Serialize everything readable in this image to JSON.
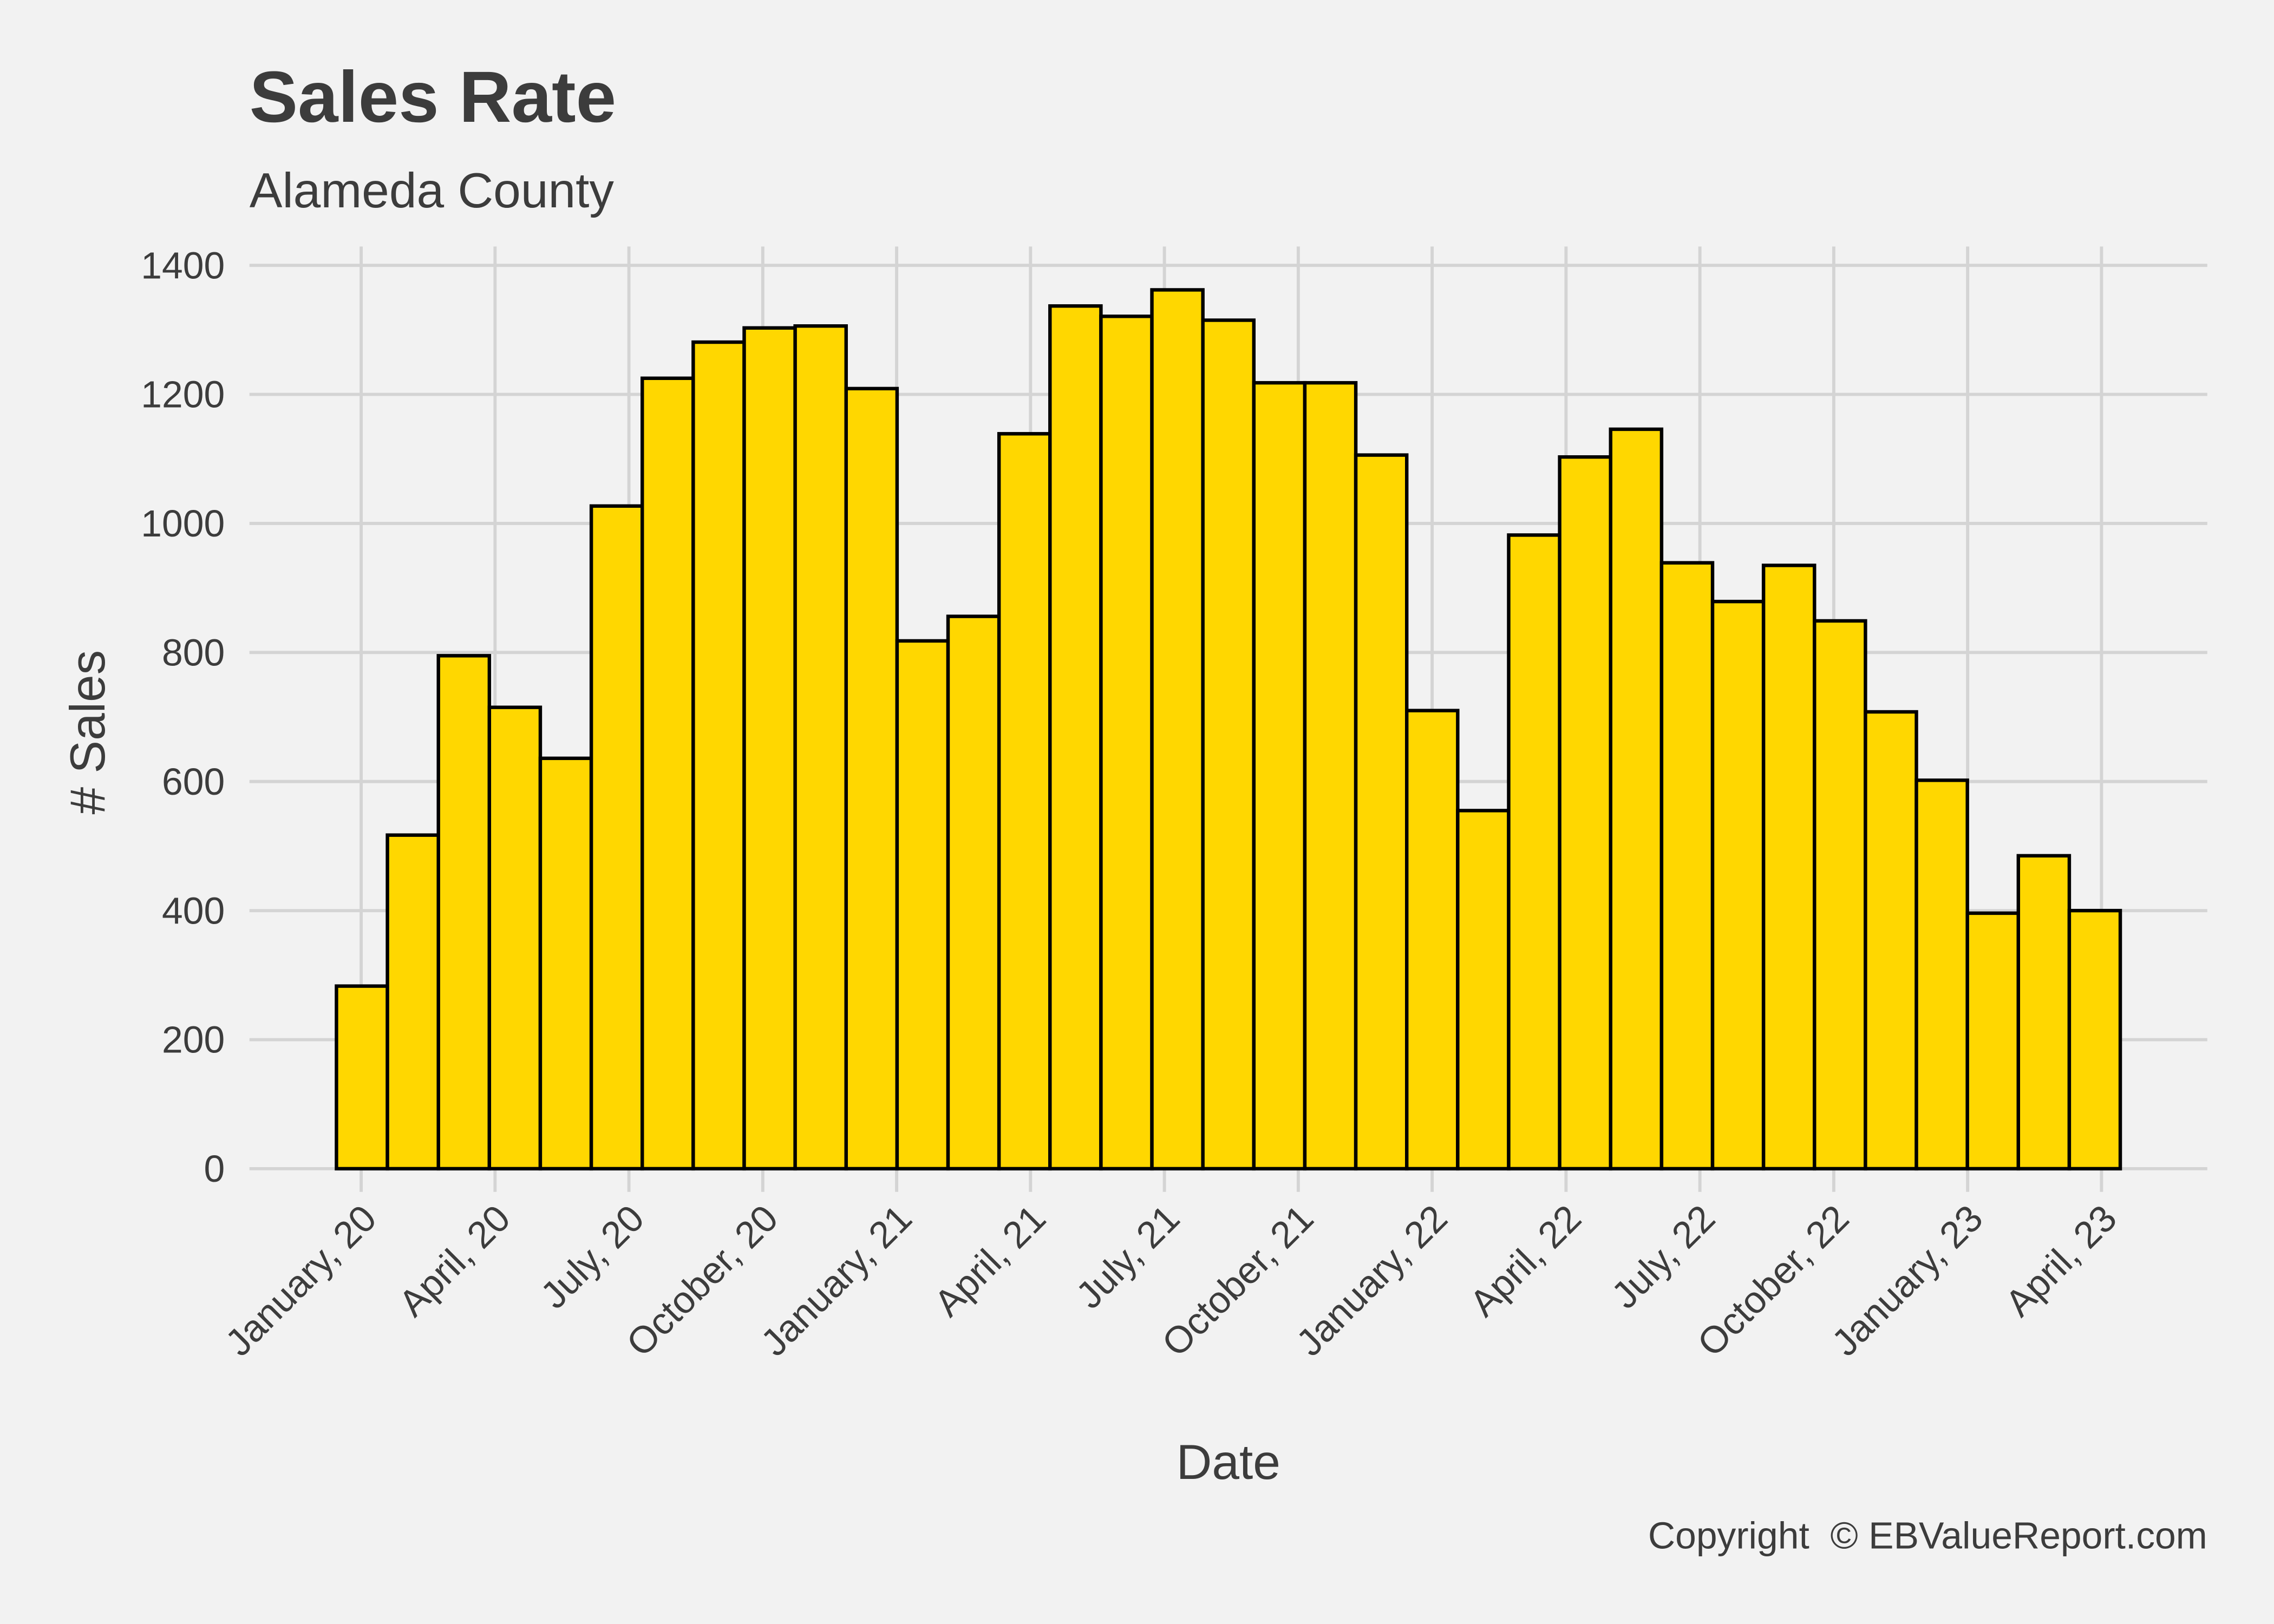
{
  "chart_data": {
    "type": "bar",
    "title": "Sales Rate",
    "subtitle": "Alameda County",
    "xlabel": "Date",
    "ylabel": "# Sales",
    "caption": "Copyright  © EBValueReport.com",
    "color": "#ffd700",
    "edgecolor": "#000000",
    "grid": true,
    "categories": [
      null,
      null,
      null,
      null,
      null,
      null,
      null,
      null,
      null,
      null,
      null,
      null,
      null,
      null,
      null,
      null,
      null,
      null,
      null,
      null,
      null,
      null,
      null,
      null,
      null,
      null,
      null,
      null,
      null,
      null,
      null,
      null,
      null,
      null,
      null
    ],
    "values": [
      283,
      517,
      795,
      715,
      636,
      1027,
      1225,
      1281,
      1303,
      1306,
      1209,
      818,
      856,
      1139,
      1337,
      1321,
      1362,
      1315,
      1218,
      1218,
      1106,
      710,
      555,
      982,
      1103,
      1146,
      939,
      879,
      935,
      849,
      708,
      602,
      396,
      485,
      400
    ],
    "xlim": [
      "2019-11",
      "2023-06"
    ],
    "xticks": [
      {
        "value": "2020-01",
        "label": "January, 20"
      },
      {
        "value": "2020-04",
        "label": "April, 20"
      },
      {
        "value": "2020-07",
        "label": "July, 20"
      },
      {
        "value": "2020-10",
        "label": "October, 20"
      },
      {
        "value": "2021-01",
        "label": "January, 21"
      },
      {
        "value": "2021-04",
        "label": "April, 21"
      },
      {
        "value": "2021-07",
        "label": "July, 21"
      },
      {
        "value": "2021-10",
        "label": "October, 21"
      },
      {
        "value": "2022-01",
        "label": "January, 22"
      },
      {
        "value": "2022-04",
        "label": "April, 22"
      },
      {
        "value": "2022-07",
        "label": "July, 22"
      },
      {
        "value": "2022-10",
        "label": "October, 22"
      },
      {
        "value": "2023-01",
        "label": "January, 23"
      },
      {
        "value": "2023-04",
        "label": "April, 23"
      }
    ],
    "ylim": [
      0,
      1400
    ],
    "yticks": [
      0,
      200,
      400,
      600,
      800,
      1000,
      1200,
      1400
    ]
  }
}
